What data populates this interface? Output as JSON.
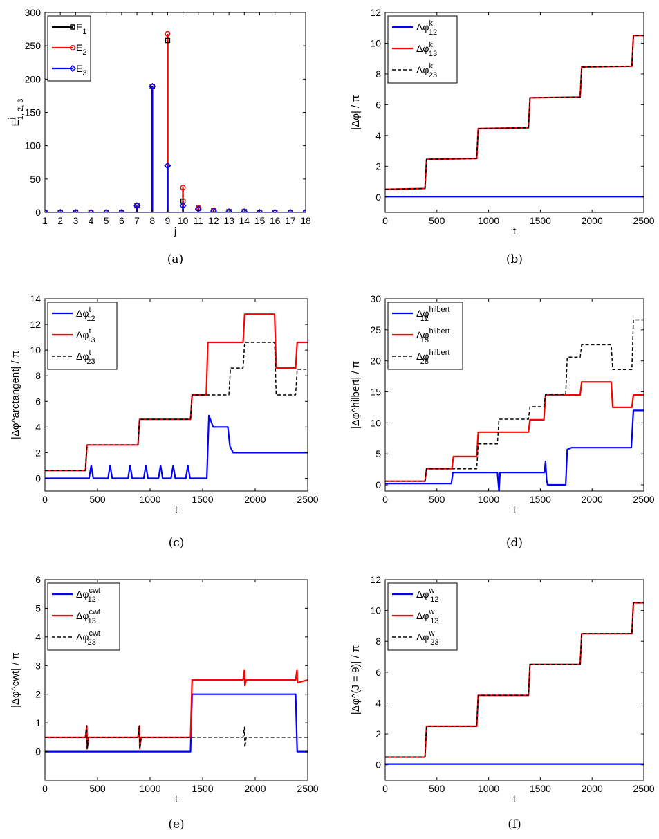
{
  "chart_data": [
    {
      "id": "a",
      "caption": "(a)",
      "type": "stem",
      "xlabel": "j",
      "ylabel": "E",
      "ylabel_sup": "j",
      "ylabel_sub": "1, 2, 3",
      "xlim": [
        1,
        18
      ],
      "ylim": [
        0,
        300
      ],
      "xticks": [
        1,
        2,
        3,
        4,
        5,
        6,
        7,
        8,
        9,
        10,
        11,
        12,
        13,
        14,
        15,
        16,
        17,
        18
      ],
      "yticks": [
        0,
        50,
        100,
        150,
        200,
        250,
        300
      ],
      "legend_position": "top-left",
      "categories": [
        1,
        2,
        3,
        4,
        5,
        6,
        7,
        8,
        9,
        10,
        11,
        12,
        13,
        14,
        15,
        16,
        17,
        18
      ],
      "series": [
        {
          "name": "E",
          "sub": "1",
          "sup": "",
          "color": "#000000",
          "marker": "square",
          "values": [
            0,
            0,
            0,
            0,
            0,
            0,
            10,
            189,
            258,
            17,
            6,
            3,
            1,
            1,
            0,
            0,
            0,
            0
          ]
        },
        {
          "name": "E",
          "sub": "2",
          "sup": "",
          "color": "#ff0000",
          "marker": "circle",
          "values": [
            0,
            0,
            0,
            0,
            0,
            0,
            10,
            189,
            268,
            37,
            7,
            3,
            1,
            1,
            0,
            0,
            0,
            0
          ]
        },
        {
          "name": "E",
          "sub": "3",
          "sup": "",
          "color": "#0000ff",
          "marker": "diamond",
          "values": [
            0,
            0,
            0,
            0,
            0,
            0,
            10,
            189,
            70,
            10,
            5,
            2,
            1,
            1,
            0,
            0,
            0,
            0
          ]
        }
      ]
    },
    {
      "id": "b",
      "caption": "(b)",
      "type": "line",
      "xlabel": "t",
      "ylabel": "|Δφ| / π",
      "xlim": [
        0,
        2500
      ],
      "ylim": [
        -1,
        12
      ],
      "xticks": [
        0,
        500,
        1000,
        1500,
        2000,
        2500
      ],
      "yticks": [
        0,
        2,
        4,
        6,
        8,
        10,
        12
      ],
      "legend_position": "top-left",
      "series": [
        {
          "name": "Δφ",
          "sub": "12",
          "sup": "k",
          "color": "#0000ff",
          "dash": false,
          "x": [
            0,
            2500
          ],
          "y": [
            0.02,
            0.02
          ]
        },
        {
          "name": "Δφ",
          "sub": "13",
          "sup": "k",
          "color": "#ff0000",
          "dash": false,
          "x": [
            0,
            385,
            400,
            885,
            900,
            1385,
            1400,
            1885,
            1900,
            2385,
            2400,
            2500
          ],
          "y": [
            0.5,
            0.55,
            2.45,
            2.5,
            4.45,
            4.5,
            6.45,
            6.5,
            8.45,
            8.5,
            10.5,
            10.5
          ]
        },
        {
          "name": "Δφ",
          "sub": "23",
          "sup": "k",
          "color": "#000000",
          "dash": true,
          "x": [
            0,
            385,
            400,
            885,
            900,
            1385,
            1400,
            1885,
            1900,
            2385,
            2400,
            2500
          ],
          "y": [
            0.5,
            0.55,
            2.45,
            2.5,
            4.45,
            4.5,
            6.45,
            6.5,
            8.45,
            8.5,
            10.5,
            10.5
          ]
        }
      ]
    },
    {
      "id": "c",
      "caption": "(c)",
      "type": "line",
      "xlabel": "t",
      "ylabel": "|Δφ^arctangent| / π",
      "xlim": [
        0,
        2500
      ],
      "ylim": [
        -1,
        14
      ],
      "xticks": [
        0,
        500,
        1000,
        1500,
        2000,
        2500
      ],
      "yticks": [
        0,
        2,
        4,
        6,
        8,
        10,
        12,
        14
      ],
      "legend_position": "top-left",
      "series": [
        {
          "name": "Δφ",
          "sub": "12",
          "sup": "t",
          "color": "#0000ff",
          "dash": false,
          "x": [
            0,
            420,
            440,
            460,
            600,
            620,
            640,
            790,
            810,
            830,
            940,
            960,
            980,
            1080,
            1100,
            1120,
            1200,
            1220,
            1240,
            1340,
            1360,
            1380,
            1540,
            1560,
            1600,
            1740,
            1760,
            1790,
            2500
          ],
          "y": [
            0,
            0,
            1,
            0,
            0,
            1,
            0,
            0,
            1,
            0,
            0,
            1,
            0,
            0,
            1,
            0,
            0,
            1,
            0,
            0,
            1,
            0,
            0,
            4.9,
            4.0,
            4.0,
            2.5,
            2.0,
            2.0
          ]
        },
        {
          "name": "Δφ",
          "sub": "13",
          "sup": "t",
          "color": "#ff0000",
          "dash": false,
          "x": [
            0,
            385,
            400,
            885,
            900,
            1385,
            1400,
            1535,
            1550,
            1885,
            1900,
            2185,
            2200,
            2385,
            2400,
            2500
          ],
          "y": [
            0.6,
            0.6,
            2.6,
            2.6,
            4.6,
            4.6,
            6.5,
            6.5,
            10.6,
            10.6,
            12.8,
            12.8,
            8.6,
            8.6,
            10.6,
            10.6
          ]
        },
        {
          "name": "Δφ",
          "sub": "23",
          "sup": "t",
          "color": "#000000",
          "dash": true,
          "x": [
            0,
            385,
            400,
            885,
            900,
            1385,
            1400,
            1750,
            1765,
            1885,
            1900,
            2185,
            2200,
            2385,
            2400,
            2500
          ],
          "y": [
            0.6,
            0.6,
            2.6,
            2.6,
            4.6,
            4.6,
            6.5,
            6.5,
            8.6,
            8.6,
            10.6,
            10.6,
            6.5,
            6.5,
            8.5,
            8.5
          ]
        }
      ]
    },
    {
      "id": "d",
      "caption": "(d)",
      "type": "line",
      "xlabel": "t",
      "ylabel": "|Δφ^hilbert| / π",
      "xlim": [
        0,
        2500
      ],
      "ylim": [
        -1,
        30
      ],
      "xticks": [
        0,
        500,
        1000,
        1500,
        2000,
        2500
      ],
      "yticks": [
        0,
        5,
        10,
        15,
        20,
        25,
        30
      ],
      "legend_position": "top-left",
      "series": [
        {
          "name": "Δφ",
          "sub": "12",
          "sup": "hilbert",
          "color": "#0000ff",
          "dash": false,
          "x": [
            0,
            640,
            655,
            1085,
            1100,
            1110,
            1540,
            1550,
            1560,
            1570,
            1745,
            1760,
            1800,
            2380,
            2400,
            2500
          ],
          "y": [
            0.2,
            0.2,
            2.0,
            2.0,
            -1,
            2.0,
            2.0,
            3.8,
            0.8,
            0,
            0,
            5.7,
            6.0,
            6.0,
            12.0,
            12.0
          ]
        },
        {
          "name": "Δφ",
          "sub": "13",
          "sup": "hilbert",
          "color": "#ff0000",
          "dash": false,
          "x": [
            0,
            385,
            400,
            645,
            660,
            885,
            900,
            1385,
            1400,
            1535,
            1550,
            1885,
            1900,
            2185,
            2200,
            2385,
            2400,
            2500
          ],
          "y": [
            0.6,
            0.6,
            2.6,
            2.6,
            4.6,
            4.6,
            8.5,
            8.5,
            10.5,
            10.5,
            14.5,
            14.5,
            16.6,
            16.6,
            12.5,
            12.5,
            14.5,
            14.5
          ]
        },
        {
          "name": "Δφ",
          "sub": "23",
          "sup": "hilbert",
          "color": "#000000",
          "dash": true,
          "x": [
            0,
            385,
            400,
            885,
            900,
            1085,
            1100,
            1385,
            1400,
            1535,
            1550,
            1745,
            1760,
            1885,
            1900,
            2185,
            2200,
            2385,
            2400,
            2500
          ],
          "y": [
            0.6,
            0.6,
            2.6,
            2.6,
            6.6,
            6.6,
            10.6,
            10.6,
            12.6,
            12.6,
            14.6,
            14.6,
            20.6,
            20.6,
            22.6,
            22.6,
            18.6,
            18.6,
            26.6,
            26.6
          ]
        }
      ]
    },
    {
      "id": "e",
      "caption": "(e)",
      "type": "line",
      "xlabel": "t",
      "ylabel": "|Δφ^cwt| / π",
      "xlim": [
        0,
        2500
      ],
      "ylim": [
        -1,
        6
      ],
      "xticks": [
        0,
        500,
        1000,
        1500,
        2000,
        2500
      ],
      "yticks": [
        0,
        1,
        2,
        3,
        4,
        5,
        6
      ],
      "legend_position": "top-left",
      "series": [
        {
          "name": "Δφ",
          "sub": "12",
          "sup": "cwt",
          "color": "#0000ff",
          "dash": false,
          "x": [
            0,
            1385,
            1400,
            2385,
            2400,
            2500
          ],
          "y": [
            0,
            0,
            2.0,
            2.0,
            0,
            0
          ]
        },
        {
          "name": "Δφ",
          "sub": "13",
          "sup": "cwt",
          "color": "#ff0000",
          "dash": false,
          "x": [
            0,
            385,
            398,
            402,
            415,
            885,
            898,
            902,
            915,
            1385,
            1400,
            1885,
            1898,
            1902,
            1915,
            2385,
            2398,
            2402,
            2500
          ],
          "y": [
            0.5,
            0.5,
            0.9,
            0.1,
            0.5,
            0.5,
            0.9,
            0.1,
            0.5,
            0.5,
            2.5,
            2.5,
            2.85,
            2.3,
            2.5,
            2.5,
            2.85,
            2.4,
            2.5
          ]
        },
        {
          "name": "Δφ",
          "sub": "23",
          "sup": "cwt",
          "color": "#000000",
          "dash": true,
          "x": [
            0,
            385,
            398,
            402,
            415,
            885,
            898,
            902,
            915,
            1385,
            1400,
            1885,
            1898,
            1902,
            1915,
            2385,
            2400,
            2500
          ],
          "y": [
            0.5,
            0.5,
            0.9,
            0.1,
            0.5,
            0.5,
            0.9,
            0.1,
            0.5,
            0.5,
            0.5,
            0.5,
            0.85,
            0.15,
            0.5,
            0.5,
            0.5,
            0.5
          ]
        }
      ]
    },
    {
      "id": "f",
      "caption": "(f)",
      "type": "line",
      "xlabel": "t",
      "ylabel": "|Δφ^(J = 9)| / π",
      "xlim": [
        0,
        2500
      ],
      "ylim": [
        -1,
        12
      ],
      "xticks": [
        0,
        500,
        1000,
        1500,
        2000,
        2500
      ],
      "yticks": [
        0,
        2,
        4,
        6,
        8,
        10,
        12
      ],
      "legend_position": "top-left",
      "series": [
        {
          "name": "Δφ",
          "sub": "12",
          "sup": "w",
          "color": "#0000ff",
          "dash": false,
          "x": [
            0,
            2500
          ],
          "y": [
            0.05,
            0.05
          ]
        },
        {
          "name": "Δφ",
          "sub": "13",
          "sup": "w",
          "color": "#ff0000",
          "dash": false,
          "x": [
            0,
            385,
            400,
            885,
            900,
            1385,
            1400,
            1885,
            1900,
            2385,
            2400,
            2500
          ],
          "y": [
            0.5,
            0.5,
            2.5,
            2.5,
            4.5,
            4.5,
            6.5,
            6.5,
            8.5,
            8.5,
            10.5,
            10.5
          ]
        },
        {
          "name": "Δφ",
          "sub": "23",
          "sup": "w",
          "color": "#000000",
          "dash": true,
          "x": [
            0,
            385,
            400,
            885,
            900,
            1385,
            1400,
            1885,
            1900,
            2385,
            2400,
            2500
          ],
          "y": [
            0.5,
            0.5,
            2.5,
            2.5,
            4.5,
            4.5,
            6.5,
            6.5,
            8.5,
            8.5,
            10.5,
            10.5
          ]
        }
      ]
    }
  ]
}
